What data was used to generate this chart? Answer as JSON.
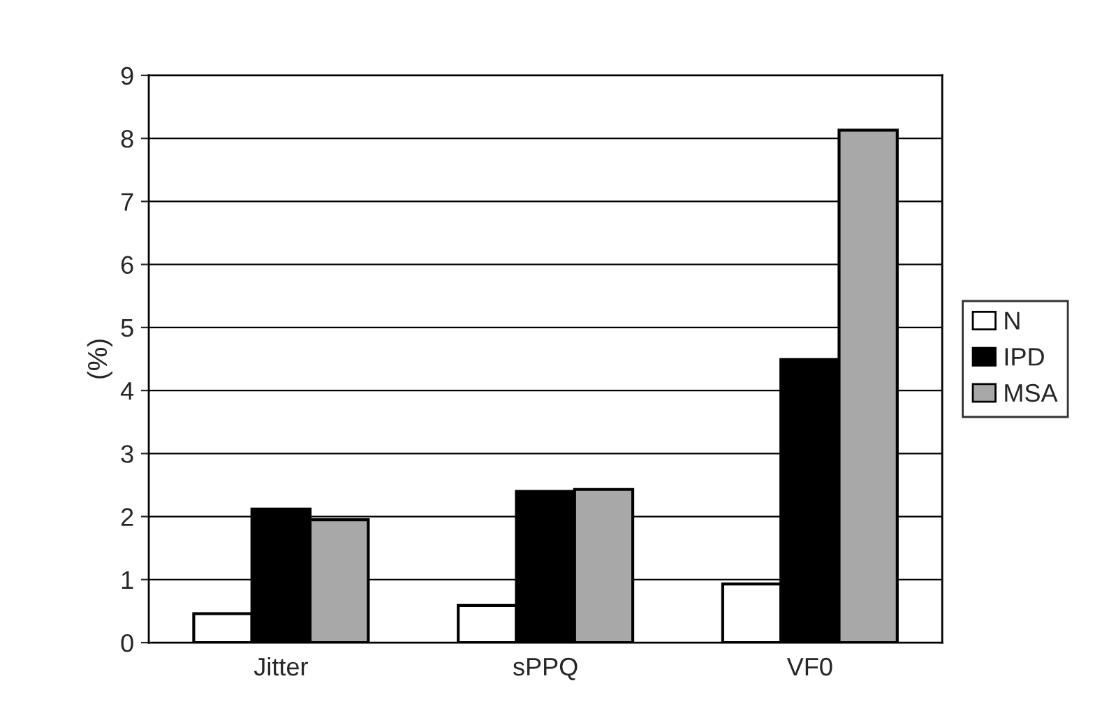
{
  "chart_data": {
    "type": "bar",
    "ylabel": "(%)",
    "categories": [
      "Jitter",
      "sPPQ",
      "VF0"
    ],
    "series": [
      {
        "name": "N",
        "color": "#ffffff",
        "values": [
          0.46,
          0.59,
          0.93
        ]
      },
      {
        "name": "IPD",
        "color": "#000000",
        "values": [
          2.12,
          2.4,
          4.49
        ]
      },
      {
        "name": "MSA",
        "color": "#a8a8a8",
        "values": [
          1.95,
          2.43,
          8.13
        ]
      }
    ],
    "ylim": [
      0,
      9
    ],
    "yticks": [
      0,
      1,
      2,
      3,
      4,
      5,
      6,
      7,
      8,
      9
    ],
    "grid": "y",
    "legend": "right"
  }
}
